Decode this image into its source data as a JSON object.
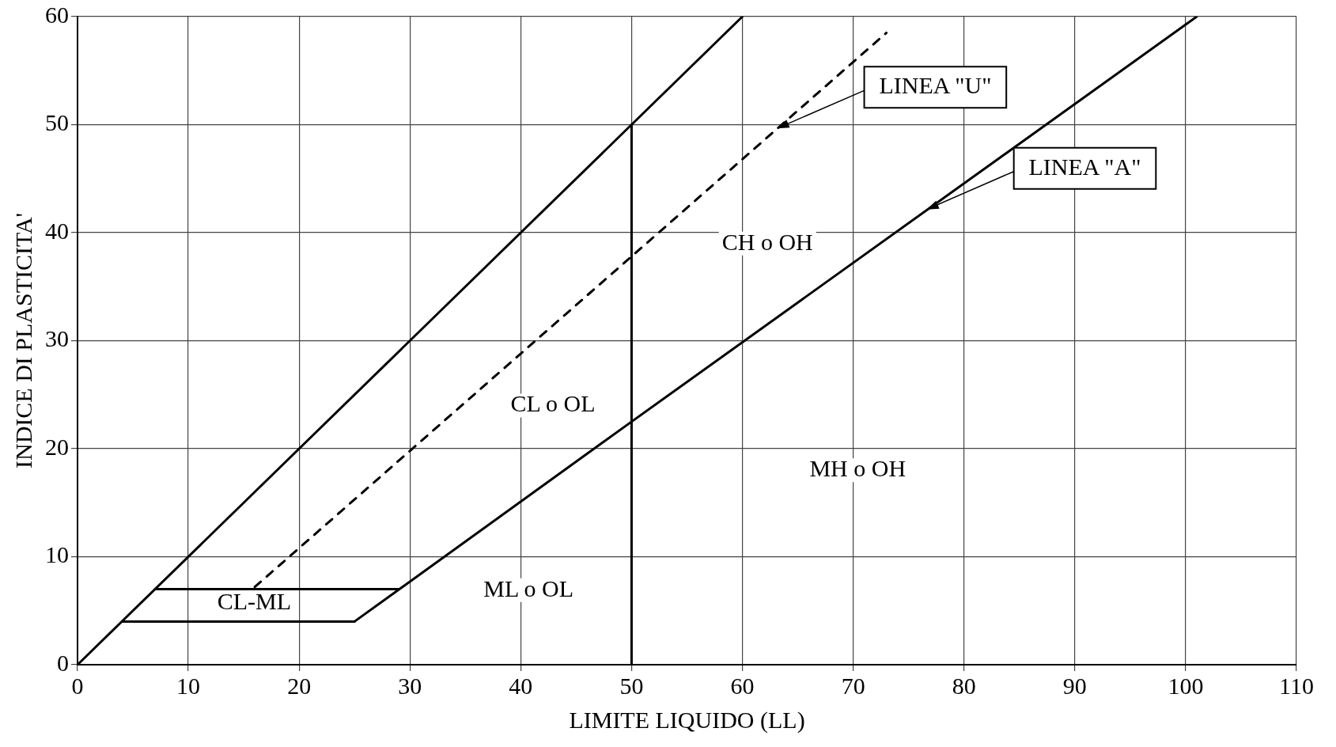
{
  "chart_data": {
    "type": "line",
    "xlabel": "LIMITE LIQUIDO (LL)",
    "ylabel": "INDICE DI PLASTICITA'",
    "xlim": [
      0,
      110
    ],
    "xticks": [
      0,
      10,
      20,
      30,
      40,
      50,
      60,
      70,
      80,
      90,
      100,
      110
    ],
    "ylim": [
      0,
      60
    ],
    "yticks": [
      0,
      10,
      20,
      30,
      40,
      50,
      60
    ],
    "grid": true,
    "legend": false,
    "marker": "none",
    "series": [
      {
        "color": "#000000",
        "x": [
          0,
          60
        ],
        "values": [
          0,
          60
        ],
        "line_style": "solid"
      },
      {
        "color": "#000000",
        "x": [
          25,
          50,
          101
        ],
        "values": [
          4,
          22.5,
          60
        ],
        "line_style": "solid"
      },
      {
        "color": "#000000",
        "x": [
          16,
          73
        ],
        "values": [
          7.2,
          58.5
        ],
        "line_style": "dashed"
      },
      {
        "color": "#000000",
        "x": [
          50,
          50
        ],
        "values": [
          0,
          50
        ],
        "line_style": "solid"
      },
      {
        "color": "#000000",
        "x": [
          7,
          29
        ],
        "values": [
          7,
          7
        ],
        "line_style": "solid"
      },
      {
        "color": "#000000",
        "x": [
          4,
          25
        ],
        "values": [
          4,
          4
        ],
        "line_style": "solid"
      }
    ],
    "annotations": [
      "CH o OH",
      "CL o OL",
      "MH o OH",
      "ML o OL",
      "CL-ML",
      {
        "text": "LINEA \"U\"",
        "x": 63,
        "y": 49.5
      },
      {
        "text": "LINEA \"A\"",
        "x": 76.5,
        "y": 42
      }
    ]
  }
}
